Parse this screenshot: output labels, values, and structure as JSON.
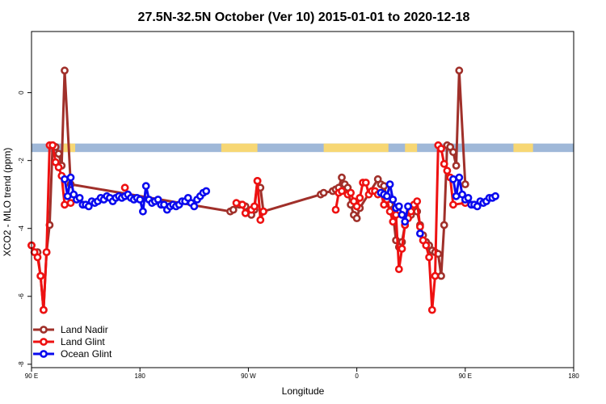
{
  "chart_data": {
    "type": "line",
    "title": "27.5N-32.5N October (Ver 10)   2015-01-01 to 2020-12-18",
    "xlabel": "Longitude",
    "ylabel": "XCO2 - MLO trend (ppm)",
    "xlim": [
      -90,
      270
    ],
    "ylim": [
      -8.1,
      1.8
    ],
    "x_ticks": [
      -90,
      -18,
      54,
      126,
      198,
      270
    ],
    "x_tick_labels": [
      "90 E",
      "180",
      "90 W",
      "0",
      "90 E",
      "180"
    ],
    "y_ticks": [
      -8,
      -6,
      -4,
      -2,
      0
    ],
    "y_tick_labels": [
      "-8",
      "-6",
      "-4",
      "-2",
      "0"
    ],
    "legend_position": "bottom-left",
    "land_ocean_band": {
      "y_range": [
        -1.75,
        -1.5
      ],
      "land_color": "#f7d774",
      "ocean_color": "#9fb8d8",
      "land_spans": [
        [
          -70,
          -61
        ],
        [
          -65,
          -64
        ],
        [
          36,
          60
        ],
        [
          104,
          147
        ],
        [
          158,
          166
        ],
        [
          230,
          243
        ]
      ]
    },
    "series": [
      {
        "name": "Land Nadir",
        "color": "#a0302a",
        "points": [
          [
            -90,
            -4.5
          ],
          [
            -88,
            -4.7
          ],
          [
            -86,
            -4.7
          ],
          [
            -84,
            -5.4
          ],
          [
            -82,
            -6.4
          ],
          [
            -80,
            -4.7
          ],
          [
            -78,
            -3.9
          ],
          [
            -76,
            -1.55
          ],
          [
            -74,
            -1.6
          ],
          [
            -72,
            -1.8
          ],
          [
            -70,
            -2.15
          ],
          [
            -68,
            0.65
          ],
          [
            -64,
            -2.7
          ],
          [
            42,
            -3.5
          ],
          [
            44,
            -3.45
          ],
          [
            48,
            -3.3
          ],
          [
            50,
            -3.3
          ],
          [
            52,
            -3.35
          ],
          [
            56,
            -3.6
          ],
          [
            58,
            -3.45
          ],
          [
            60,
            -2.6
          ],
          [
            62,
            -2.8
          ],
          [
            64,
            -3.5
          ],
          [
            102,
            -3.0
          ],
          [
            104,
            -2.95
          ],
          [
            110,
            -2.9
          ],
          [
            112,
            -2.85
          ],
          [
            114,
            -2.8
          ],
          [
            116,
            -2.5
          ],
          [
            118,
            -2.7
          ],
          [
            120,
            -2.8
          ],
          [
            122,
            -3.3
          ],
          [
            124,
            -3.6
          ],
          [
            126,
            -3.7
          ],
          [
            128,
            -3.4
          ],
          [
            140,
            -2.55
          ],
          [
            142,
            -2.7
          ],
          [
            144,
            -2.75
          ],
          [
            146,
            -3.1
          ],
          [
            148,
            -3.3
          ],
          [
            150,
            -3.55
          ],
          [
            152,
            -4.35
          ],
          [
            154,
            -4.55
          ],
          [
            156,
            -4.4
          ],
          [
            158,
            -3.9
          ],
          [
            160,
            -3.7
          ],
          [
            162,
            -3.6
          ],
          [
            164,
            -3.3
          ],
          [
            166,
            -3.5
          ],
          [
            168,
            -3.9
          ],
          [
            170,
            -4.2
          ],
          [
            172,
            -4.4
          ],
          [
            174,
            -4.5
          ],
          [
            176,
            -4.65
          ],
          [
            178,
            -4.7
          ],
          [
            180,
            -4.75
          ],
          [
            182,
            -5.4
          ],
          [
            184,
            -3.9
          ],
          [
            186,
            -1.55
          ],
          [
            188,
            -1.6
          ],
          [
            190,
            -1.75
          ],
          [
            192,
            -2.15
          ],
          [
            194,
            0.65
          ],
          [
            198,
            -2.7
          ]
        ]
      },
      {
        "name": "Land Glint",
        "color": "#ee1111",
        "segments": [
          [
            [
              -90,
              -4.5
            ],
            [
              -88,
              -4.7
            ],
            [
              -86,
              -4.85
            ],
            [
              -84,
              -5.4
            ],
            [
              -82,
              -6.4
            ],
            [
              -80,
              -4.7
            ],
            [
              -78,
              -1.55
            ],
            [
              -76,
              -1.55
            ],
            [
              -74,
              -2.05
            ],
            [
              -72,
              -2.2
            ],
            [
              -70,
              -2.45
            ],
            [
              -68,
              -3.3
            ],
            [
              -64,
              -3.25
            ]
          ],
          [
            [
              -28,
              -2.8
            ]
          ],
          [
            [
              46,
              -3.25
            ],
            [
              50,
              -3.3
            ],
            [
              52,
              -3.55
            ],
            [
              56,
              -3.45
            ],
            [
              58,
              -3.35
            ],
            [
              60,
              -2.6
            ],
            [
              62,
              -3.75
            ],
            [
              64,
              -3.5
            ]
          ],
          [
            [
              112,
              -3.45
            ],
            [
              114,
              -2.95
            ],
            [
              116,
              -2.9
            ],
            [
              120,
              -3.0
            ],
            [
              122,
              -2.95
            ],
            [
              124,
              -3.2
            ],
            [
              126,
              -3.35
            ],
            [
              128,
              -3.1
            ],
            [
              130,
              -2.65
            ],
            [
              132,
              -2.65
            ],
            [
              134,
              -3.0
            ],
            [
              136,
              -2.9
            ],
            [
              138,
              -2.9
            ],
            [
              140,
              -3.0
            ],
            [
              142,
              -2.95
            ],
            [
              144,
              -3.3
            ],
            [
              146,
              -3.15
            ],
            [
              148,
              -3.5
            ],
            [
              150,
              -3.8
            ],
            [
              152,
              -3.6
            ],
            [
              154,
              -5.2
            ],
            [
              156,
              -4.6
            ],
            [
              158,
              -3.9
            ],
            [
              160,
              -3.7
            ],
            [
              162,
              -3.5
            ],
            [
              164,
              -3.3
            ],
            [
              166,
              -3.2
            ],
            [
              168,
              -3.95
            ],
            [
              170,
              -4.35
            ],
            [
              172,
              -4.5
            ],
            [
              174,
              -4.85
            ],
            [
              176,
              -6.4
            ],
            [
              178,
              -5.4
            ],
            [
              180,
              -1.55
            ],
            [
              182,
              -1.65
            ],
            [
              184,
              -2.1
            ],
            [
              186,
              -2.3
            ],
            [
              188,
              -2.5
            ],
            [
              190,
              -3.3
            ],
            [
              198,
              -3.25
            ]
          ]
        ]
      },
      {
        "name": "Ocean Glint",
        "color": "#0a0aee",
        "segments": [
          [
            [
              -68,
              -2.55
            ],
            [
              -66,
              -3.05
            ],
            [
              -64,
              -2.5
            ],
            [
              -62,
              -3.0
            ],
            [
              -60,
              -3.15
            ],
            [
              -58,
              -3.1
            ],
            [
              -56,
              -3.3
            ],
            [
              -54,
              -3.3
            ],
            [
              -52,
              -3.35
            ],
            [
              -50,
              -3.2
            ],
            [
              -48,
              -3.25
            ],
            [
              -46,
              -3.2
            ],
            [
              -44,
              -3.1
            ],
            [
              -42,
              -3.15
            ],
            [
              -40,
              -3.05
            ],
            [
              -38,
              -3.1
            ],
            [
              -36,
              -3.2
            ],
            [
              -34,
              -3.1
            ],
            [
              -32,
              -3.05
            ],
            [
              -30,
              -3.1
            ],
            [
              -28,
              -3.05
            ],
            [
              -26,
              -3.0
            ],
            [
              -24,
              -3.1
            ],
            [
              -22,
              -3.15
            ],
            [
              -20,
              -3.1
            ],
            [
              -18,
              -3.15
            ],
            [
              -16,
              -3.5
            ],
            [
              -14,
              -2.75
            ],
            [
              -12,
              -3.15
            ],
            [
              -10,
              -3.25
            ],
            [
              -8,
              -3.2
            ],
            [
              -6,
              -3.15
            ],
            [
              -4,
              -3.3
            ],
            [
              -2,
              -3.3
            ],
            [
              0,
              -3.45
            ],
            [
              2,
              -3.35
            ],
            [
              4,
              -3.3
            ],
            [
              6,
              -3.35
            ],
            [
              8,
              -3.3
            ],
            [
              10,
              -3.2
            ],
            [
              12,
              -3.2
            ],
            [
              14,
              -3.1
            ],
            [
              16,
              -3.25
            ],
            [
              18,
              -3.35
            ],
            [
              20,
              -3.15
            ],
            [
              22,
              -3.05
            ],
            [
              24,
              -2.95
            ],
            [
              26,
              -2.9
            ]
          ],
          [
            [
              142,
              -2.95
            ],
            [
              144,
              -3.0
            ],
            [
              146,
              -3.05
            ],
            [
              148,
              -2.7
            ],
            [
              150,
              -3.15
            ],
            [
              152,
              -3.4
            ],
            [
              154,
              -3.35
            ],
            [
              156,
              -3.6
            ],
            [
              158,
              -3.8
            ],
            [
              160,
              -3.35
            ]
          ],
          [
            [
              168,
              -4.15
            ]
          ],
          [
            [
              190,
              -2.55
            ],
            [
              192,
              -3.05
            ],
            [
              194,
              -2.5
            ],
            [
              196,
              -3.0
            ],
            [
              198,
              -3.15
            ],
            [
              200,
              -3.1
            ],
            [
              202,
              -3.3
            ],
            [
              204,
              -3.3
            ],
            [
              206,
              -3.35
            ],
            [
              208,
              -3.2
            ],
            [
              210,
              -3.25
            ],
            [
              212,
              -3.2
            ],
            [
              214,
              -3.1
            ],
            [
              216,
              -3.1
            ],
            [
              218,
              -3.05
            ]
          ]
        ]
      }
    ]
  }
}
